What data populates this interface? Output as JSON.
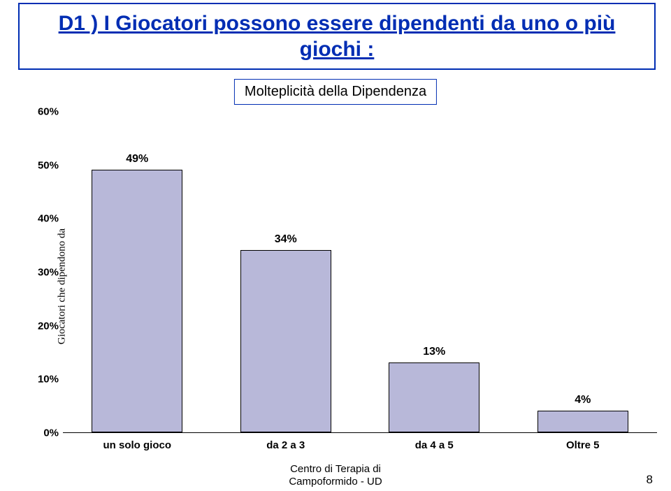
{
  "title": {
    "prefix": "D1 )",
    "body": "  I Giocatori possono essere dipendenti da uno o più giochi :",
    "color": "#002db3",
    "border_color": "#002db3"
  },
  "subtitle": {
    "text": "Molteplicità della Dipendenza",
    "border_color": "#002db3"
  },
  "chart": {
    "type": "bar",
    "y_axis_label": "Giocatori che dipendono da",
    "ylim_max": 60,
    "ytick_step": 10,
    "yticks": [
      "60%",
      "50%",
      "40%",
      "30%",
      "20%",
      "10%",
      "0%"
    ],
    "bar_color": "#b8b8d9",
    "bar_border": "#000000",
    "label_color": "#000000",
    "categories": [
      {
        "label": "un solo gioco",
        "value": 49,
        "display": "49%"
      },
      {
        "label": "da 2 a 3",
        "value": 34,
        "display": "34%"
      },
      {
        "label": "da 4 a 5",
        "value": 13,
        "display": "13%"
      },
      {
        "label": "Oltre 5",
        "value": 4,
        "display": "4%"
      }
    ]
  },
  "footer": {
    "center_line1": "Centro di Terapia di",
    "center_line2": "Campoformido - UD",
    "page_number": "8"
  }
}
